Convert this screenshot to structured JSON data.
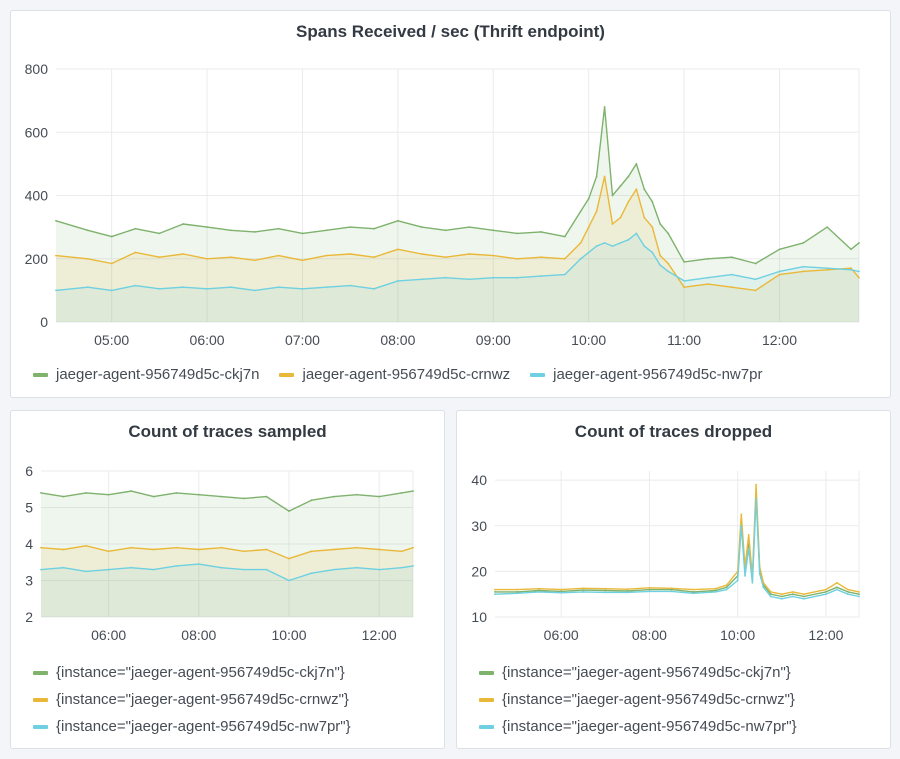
{
  "colors": {
    "green": "#7eb26d",
    "yellow": "#eab839",
    "cyan": "#6ed0e0",
    "grid": "#e9ebee",
    "axis_text": "#464c54"
  },
  "panels": [
    {
      "title": "Spans Received / sec (Thrift endpoint)"
    },
    {
      "title": "Count of traces sampled"
    },
    {
      "title": "Count of traces dropped"
    }
  ],
  "chart_data": [
    {
      "type": "area",
      "title": "Spans Received / sec (Thrift endpoint)",
      "xlabel": "",
      "ylabel": "",
      "ylim": [
        0,
        800
      ],
      "yticks": [
        "0",
        "200",
        "400",
        "600",
        "800"
      ],
      "xlim": [
        "04:25",
        "12:50"
      ],
      "xticks": [
        "05:00",
        "06:00",
        "07:00",
        "08:00",
        "09:00",
        "10:00",
        "11:00",
        "12:00"
      ],
      "grid": true,
      "legend_position": "bottom",
      "legend": [
        "jaeger-agent-956749d5c-ckj7n",
        "jaeger-agent-956749d5c-crnwz",
        "jaeger-agent-956749d5c-nw7pr"
      ],
      "x": [
        "04:25",
        "04:45",
        "05:00",
        "05:15",
        "05:30",
        "05:45",
        "06:00",
        "06:15",
        "06:30",
        "06:45",
        "07:00",
        "07:15",
        "07:30",
        "07:45",
        "08:00",
        "08:15",
        "08:30",
        "08:45",
        "09:00",
        "09:15",
        "09:30",
        "09:45",
        "09:55",
        "10:00",
        "10:05",
        "10:10",
        "10:15",
        "10:20",
        "10:25",
        "10:30",
        "10:35",
        "10:40",
        "10:45",
        "10:50",
        "11:00",
        "11:15",
        "11:30",
        "11:45",
        "12:00",
        "12:15",
        "12:30",
        "12:45",
        "12:50"
      ],
      "series": [
        {
          "name": "jaeger-agent-956749d5c-ckj7n",
          "color": "#7eb26d",
          "values": [
            320,
            290,
            270,
            295,
            280,
            310,
            300,
            290,
            285,
            295,
            280,
            290,
            300,
            295,
            320,
            300,
            290,
            300,
            290,
            280,
            285,
            270,
            350,
            390,
            460,
            680,
            400,
            430,
            460,
            500,
            420,
            380,
            310,
            280,
            190,
            200,
            205,
            185,
            230,
            250,
            300,
            230,
            250
          ]
        },
        {
          "name": "jaeger-agent-956749d5c-crnwz",
          "color": "#eab839",
          "values": [
            210,
            200,
            185,
            220,
            205,
            215,
            200,
            205,
            195,
            210,
            195,
            210,
            215,
            205,
            230,
            215,
            205,
            215,
            210,
            200,
            205,
            200,
            250,
            300,
            350,
            460,
            310,
            330,
            380,
            420,
            330,
            300,
            210,
            185,
            110,
            120,
            110,
            100,
            150,
            160,
            165,
            170,
            140
          ]
        },
        {
          "name": "jaeger-agent-956749d5c-nw7pr",
          "color": "#6ed0e0",
          "values": [
            100,
            110,
            100,
            115,
            105,
            110,
            105,
            110,
            100,
            110,
            105,
            110,
            115,
            105,
            130,
            135,
            140,
            135,
            140,
            140,
            145,
            150,
            200,
            220,
            240,
            250,
            240,
            250,
            260,
            280,
            240,
            220,
            180,
            160,
            130,
            140,
            150,
            135,
            160,
            175,
            170,
            165,
            160
          ]
        }
      ]
    },
    {
      "type": "area",
      "title": "Count of traces sampled",
      "xlabel": "",
      "ylabel": "",
      "ylim": [
        2,
        6
      ],
      "yticks": [
        "2",
        "3",
        "4",
        "5",
        "6"
      ],
      "xlim": [
        "04:30",
        "12:45"
      ],
      "xticks": [
        "06:00",
        "08:00",
        "10:00",
        "12:00"
      ],
      "grid": true,
      "legend_position": "bottom",
      "legend": [
        "{instance=\"jaeger-agent-956749d5c-ckj7n\"}",
        "{instance=\"jaeger-agent-956749d5c-crnwz\"}",
        "{instance=\"jaeger-agent-956749d5c-nw7pr\"}"
      ],
      "x": [
        "04:30",
        "05:00",
        "05:30",
        "06:00",
        "06:30",
        "07:00",
        "07:30",
        "08:00",
        "08:30",
        "09:00",
        "09:30",
        "10:00",
        "10:30",
        "11:00",
        "11:30",
        "12:00",
        "12:30",
        "12:45"
      ],
      "series": [
        {
          "name": "{instance=\"jaeger-agent-956749d5c-ckj7n\"}",
          "color": "#7eb26d",
          "values": [
            5.4,
            5.3,
            5.4,
            5.35,
            5.45,
            5.3,
            5.4,
            5.35,
            5.3,
            5.25,
            5.3,
            4.9,
            5.2,
            5.3,
            5.35,
            5.3,
            5.4,
            5.45
          ]
        },
        {
          "name": "{instance=\"jaeger-agent-956749d5c-crnwz\"}",
          "color": "#eab839",
          "values": [
            3.9,
            3.85,
            3.95,
            3.8,
            3.9,
            3.85,
            3.9,
            3.85,
            3.9,
            3.8,
            3.85,
            3.6,
            3.8,
            3.85,
            3.9,
            3.85,
            3.8,
            3.9
          ]
        },
        {
          "name": "{instance=\"jaeger-agent-956749d5c-nw7pr\"}",
          "color": "#6ed0e0",
          "values": [
            3.3,
            3.35,
            3.25,
            3.3,
            3.35,
            3.3,
            3.4,
            3.45,
            3.35,
            3.3,
            3.3,
            3.0,
            3.2,
            3.3,
            3.35,
            3.3,
            3.35,
            3.4
          ]
        }
      ]
    },
    {
      "type": "line",
      "title": "Count of traces dropped",
      "xlabel": "",
      "ylabel": "",
      "ylim": [
        10,
        42
      ],
      "yticks": [
        "10",
        "20",
        "30",
        "40"
      ],
      "xlim": [
        "04:30",
        "12:45"
      ],
      "xticks": [
        "06:00",
        "08:00",
        "10:00",
        "12:00"
      ],
      "grid": true,
      "legend_position": "bottom",
      "legend": [
        "{instance=\"jaeger-agent-956749d5c-ckj7n\"}",
        "{instance=\"jaeger-agent-956749d5c-crnwz\"}",
        "{instance=\"jaeger-agent-956749d5c-nw7pr\"}"
      ],
      "x": [
        "04:30",
        "05:00",
        "05:30",
        "06:00",
        "06:30",
        "07:00",
        "07:30",
        "08:00",
        "08:30",
        "09:00",
        "09:30",
        "09:45",
        "10:00",
        "10:05",
        "10:10",
        "10:15",
        "10:20",
        "10:25",
        "10:30",
        "10:35",
        "10:45",
        "11:00",
        "11:15",
        "11:30",
        "12:00",
        "12:15",
        "12:30",
        "12:45"
      ],
      "series": [
        {
          "name": "{instance=\"jaeger-agent-956749d5c-ckj7n\"}",
          "color": "#7eb26d",
          "values": [
            15.5,
            15.5,
            15.8,
            15.6,
            15.9,
            15.8,
            15.7,
            16.0,
            16.0,
            15.5,
            15.8,
            16.5,
            19,
            31,
            20,
            26,
            18,
            37,
            20,
            17,
            15,
            14.5,
            15,
            14.5,
            15.5,
            16.5,
            15.5,
            15
          ]
        },
        {
          "name": "{instance=\"jaeger-agent-956749d5c-crnwz\"}",
          "color": "#eab839",
          "values": [
            16,
            16,
            16.2,
            16,
            16.3,
            16.2,
            16.1,
            16.4,
            16.3,
            16,
            16.2,
            17,
            20,
            32.5,
            21,
            28,
            19,
            39,
            21,
            17.5,
            15.5,
            15,
            15.5,
            15,
            16,
            17.5,
            16,
            15.5
          ]
        },
        {
          "name": "{instance=\"jaeger-agent-956749d5c-nw7pr\"}",
          "color": "#6ed0e0",
          "values": [
            15,
            15.2,
            15.5,
            15.3,
            15.5,
            15.4,
            15.4,
            15.6,
            15.6,
            15.2,
            15.5,
            16,
            18,
            30,
            19,
            25,
            17.5,
            36,
            19.5,
            16.5,
            14.5,
            14,
            14.5,
            14,
            15,
            16,
            15,
            14.5
          ]
        }
      ]
    }
  ]
}
